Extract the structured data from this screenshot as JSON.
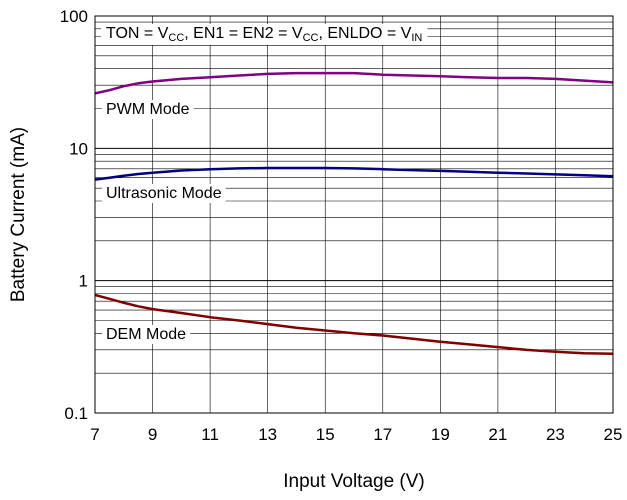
{
  "chart_data": {
    "type": "line",
    "title": "",
    "annotation": {
      "parts": [
        {
          "t": "TON = V",
          "sub": false
        },
        {
          "t": "CC",
          "sub": true
        },
        {
          "t": ", EN1 = EN2 = V",
          "sub": false
        },
        {
          "t": "CC",
          "sub": true
        },
        {
          "t": ", ENLDO = V",
          "sub": false
        },
        {
          "t": "IN",
          "sub": true
        }
      ]
    },
    "xlabel": "Input Voltage (V)",
    "ylabel": "Battery Current  (mA)",
    "xlim": [
      7,
      25
    ],
    "ylim": [
      0.1,
      100
    ],
    "yscale": "log",
    "grid": true,
    "x_ticks": [
      7,
      9,
      11,
      13,
      15,
      17,
      19,
      21,
      23,
      25
    ],
    "y_ticks": [
      {
        "value": 0.1,
        "label": "0.1"
      },
      {
        "value": 1,
        "label": "1"
      },
      {
        "value": 10,
        "label": "10"
      },
      {
        "value": 100,
        "label": "100"
      }
    ],
    "series": [
      {
        "name": "PWM Mode",
        "color": "#800080",
        "x": [
          7,
          7.5,
          8,
          8.5,
          9,
          10,
          11,
          12,
          13,
          14,
          15,
          16,
          17,
          18,
          19,
          20,
          21,
          22,
          23,
          24,
          25
        ],
        "y": [
          26,
          27.5,
          29.5,
          31,
          32,
          33.5,
          34.5,
          35.5,
          36.5,
          37,
          37,
          37,
          36,
          35.5,
          35,
          34.5,
          34,
          34,
          33.5,
          32.5,
          31.5
        ]
      },
      {
        "name": "Ultrasonic Mode",
        "color": "#000080",
        "x": [
          7,
          7.5,
          8,
          8.5,
          9,
          10,
          11,
          12,
          13,
          14,
          15,
          16,
          17,
          18,
          19,
          20,
          21,
          22,
          23,
          24,
          25
        ],
        "y": [
          5.8,
          6.0,
          6.2,
          6.4,
          6.55,
          6.8,
          6.95,
          7.05,
          7.1,
          7.1,
          7.1,
          7.05,
          6.95,
          6.85,
          6.75,
          6.65,
          6.55,
          6.45,
          6.35,
          6.25,
          6.15
        ]
      },
      {
        "name": "DEM Mode",
        "color": "#800000",
        "x": [
          7,
          7.5,
          8,
          8.5,
          9,
          10,
          11,
          12,
          13,
          14,
          15,
          16,
          17,
          18,
          19,
          20,
          21,
          22,
          23,
          24,
          25
        ],
        "y": [
          0.78,
          0.73,
          0.68,
          0.64,
          0.61,
          0.57,
          0.53,
          0.5,
          0.47,
          0.44,
          0.42,
          0.4,
          0.385,
          0.365,
          0.345,
          0.33,
          0.315,
          0.3,
          0.29,
          0.283,
          0.28
        ]
      }
    ]
  }
}
